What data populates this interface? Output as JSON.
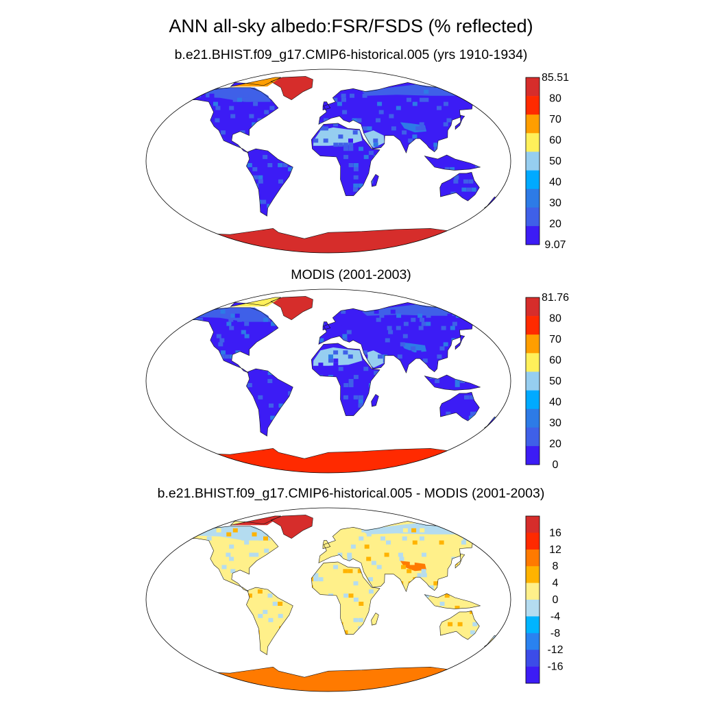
{
  "title": "ANN all-sky albedo:FSR/FSDS (% reflected)",
  "colors": {
    "frame": "#000000",
    "land_outline": "#111111",
    "ocean": "#ffffff"
  },
  "panels": [
    {
      "id": "model",
      "title": "b.e21.BHIST.f09_g17.CMIP6-historical.005 (yrs 1910-1934)",
      "colorbar": {
        "labels": [
          "85.51",
          "80",
          "70",
          "60",
          "50",
          "40",
          "30",
          "20",
          "9.07"
        ],
        "colors": [
          "#d62d2b",
          "#ff2a00",
          "#ff9e00",
          "#fff05a",
          "#96cef0",
          "#00aaff",
          "#2d7be6",
          "#3f60e8",
          "#3c1cf5"
        ]
      },
      "fills": {
        "background_land": "#3c1cf5",
        "sahara": "#96cef0",
        "arabia": "#96cef0",
        "greenland": "#d62d2b",
        "antarctica": "#d62d2b",
        "arctic_fringe": "#ff9e00",
        "canada_north": "#3f60e8",
        "siberia_north": "#3f60e8",
        "tibet": "#2d7be6"
      }
    },
    {
      "id": "obs",
      "title": "MODIS (2001-2003)",
      "colorbar": {
        "labels": [
          "81.76",
          "80",
          "70",
          "60",
          "50",
          "40",
          "30",
          "20",
          "0"
        ],
        "colors": [
          "#d62d2b",
          "#ff2a00",
          "#ff9e00",
          "#fff05a",
          "#96cef0",
          "#00aaff",
          "#2d7be6",
          "#3f60e8",
          "#3c1cf5"
        ]
      },
      "fills": {
        "background_land": "#3c1cf5",
        "sahara": "#96cef0",
        "arabia": "#96cef0",
        "greenland": "#d62d2b",
        "antarctica": "#ff2a00",
        "arctic_fringe": "#fff05a",
        "canada_north": "#3f60e8",
        "siberia_north": "#3f60e8",
        "tibet": "#2d7be6"
      }
    },
    {
      "id": "diff",
      "title": "b.e21.BHIST.f09_g17.CMIP6-historical.005 - MODIS (2001-2003)",
      "colorbar": {
        "labels": [
          "16",
          "12",
          "8",
          "4",
          "0",
          "-4",
          "-8",
          "-12",
          "-16"
        ],
        "colors": [
          "#d62d2b",
          "#ff2a00",
          "#ff7a00",
          "#ffb300",
          "#fff08a",
          "#b4dcf0",
          "#00b4ff",
          "#2a82f0",
          "#3c4ce8",
          "#3c1cf5"
        ]
      },
      "fills": {
        "background_land": "#fff08a",
        "sahara": "#fff08a",
        "arabia": "#fff08a",
        "greenland": "#d62d2b",
        "antarctica": "#ff7a00",
        "arctic_fringe": "#d62d2b",
        "canada_north": "#b4dcf0",
        "siberia_north": "#b4dcf0",
        "tibet": "#ff7a00"
      }
    }
  ]
}
